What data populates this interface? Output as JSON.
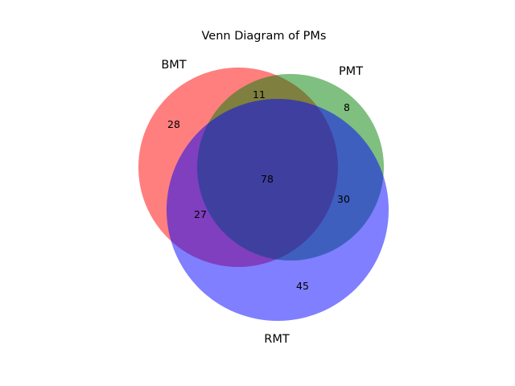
{
  "title": "Venn Diagram of PMs",
  "sets": [
    {
      "key": "bmt",
      "label": "BMT",
      "color": "#ff0000"
    },
    {
      "key": "pmt",
      "label": "PMT",
      "color": "#008000"
    },
    {
      "key": "rmt",
      "label": "RMT",
      "color": "#0000ff"
    }
  ],
  "region_values": {
    "bmt_only": "28",
    "pmt_only": "8",
    "rmt_only": "45",
    "bmt_pmt": "11",
    "bmt_rmt": "27",
    "pmt_rmt": "30",
    "all_three": "78"
  }
}
